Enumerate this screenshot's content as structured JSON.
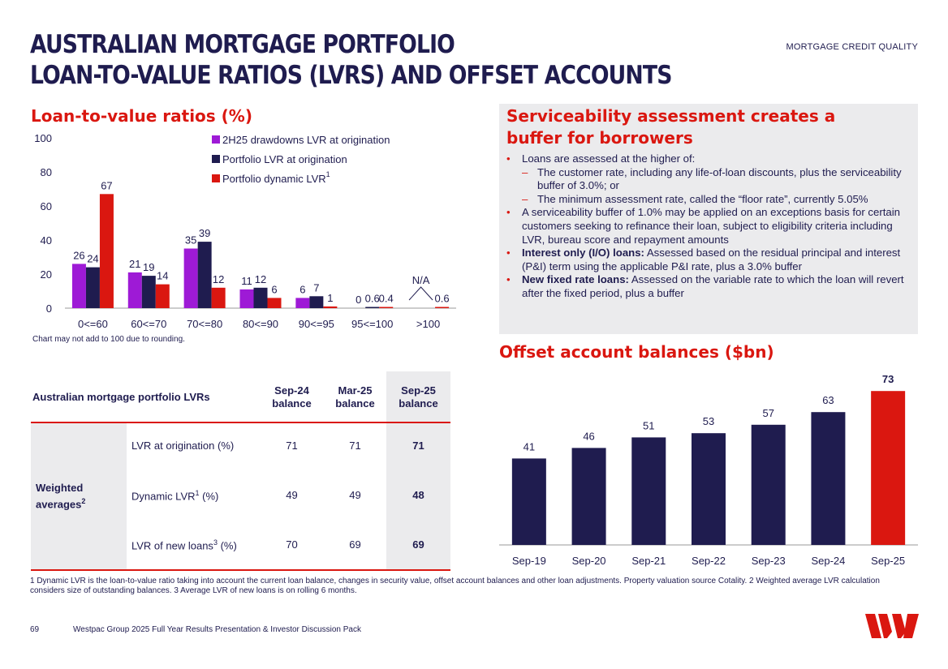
{
  "header": {
    "title_line1": "AUSTRALIAN MORTGAGE PORTFOLIO",
    "title_line2": "LOAN-TO-VALUE RATIOS (LVRS) AND OFFSET ACCOUNTS",
    "section": "MORTGAGE CREDIT QUALITY"
  },
  "colors": {
    "purple": "#9e1ad6",
    "navy": "#1f1c4f",
    "red": "#da1710",
    "grey": "#ebebed"
  },
  "lvr_chart": {
    "heading": "Loan-to-value ratios (%)",
    "legend": [
      {
        "label": "2H25 drawdowns LVR at origination",
        "sup": ""
      },
      {
        "label": "Portfolio LVR at origination",
        "sup": ""
      },
      {
        "label": "Portfolio dynamic LVR",
        "sup": "1"
      }
    ],
    "note": "Chart may not add to 100 due to rounding.",
    "na_label": "N/A"
  },
  "serviceability": {
    "title": "Serviceability assessment creates a buffer for borrowers",
    "b1": "Loans are assessed at the higher of:",
    "b1a": "The customer rate, including any life-of-loan discounts, plus the serviceability buffer of 3.0%; or",
    "b1b": "The minimum assessment rate, called the “floor rate”, currently 5.05%",
    "b2": "A serviceability buffer of 1.0% may be applied on an exceptions basis for certain customers seeking to refinance their loan, subject to eligibility criteria including LVR, bureau score and repayment amounts",
    "b3_bold": "Interest only (I/O) loans:",
    "b3": " Assessed based on the residual principal and interest (P&I) term using the applicable P&I rate, plus a 3.0% buffer",
    "b4_bold": "New fixed rate loans:",
    "b4": " Assessed on the variable rate to which the loan will revert after the fixed period, plus a buffer"
  },
  "table": {
    "title": "Australian mortgage portfolio LVRs",
    "cols": [
      {
        "l1": "Sep-24",
        "l2": "balance"
      },
      {
        "l1": "Mar-25",
        "l2": "balance"
      },
      {
        "l1": "Sep-25",
        "l2": "balance"
      }
    ],
    "group_l1": "Weighted",
    "group_l2": "averages",
    "group_sup": "2",
    "rows": [
      {
        "label": "LVR at origination (%)",
        "sup": "",
        "suffix": "",
        "values": [
          "71",
          "71",
          "71"
        ]
      },
      {
        "label": "Dynamic LVR",
        "sup": "1",
        "suffix": " (%)",
        "values": [
          "49",
          "49",
          "48"
        ]
      },
      {
        "label": "LVR of new loans",
        "sup": "3",
        "suffix": " (%)",
        "values": [
          "70",
          "69",
          "69"
        ]
      }
    ]
  },
  "offset": {
    "heading": "Offset account balances ($bn)"
  },
  "chart_data": [
    {
      "type": "bar",
      "title": "Loan-to-value ratios (%)",
      "categories": [
        "0<=60",
        "60<=70",
        "70<=80",
        "80<=90",
        "90<=95",
        "95<=100",
        ">100"
      ],
      "series": [
        {
          "name": "2H25 drawdowns LVR at origination",
          "values": [
            26,
            21,
            35,
            11,
            6,
            0,
            null
          ],
          "labels": [
            "26",
            "21",
            "35",
            "11",
            "6",
            "0",
            ""
          ]
        },
        {
          "name": "Portfolio LVR at origination",
          "values": [
            24,
            19,
            39,
            12,
            7,
            0.6,
            null
          ],
          "labels": [
            "24",
            "19",
            "39",
            "12",
            "7",
            "0.6",
            ""
          ]
        },
        {
          "name": "Portfolio dynamic LVR",
          "values": [
            67,
            14,
            12,
            6,
            1,
            0.4,
            0.6
          ],
          "labels": [
            "67",
            "14",
            "12",
            "6",
            "1",
            "0.4",
            "0.6"
          ]
        }
      ],
      "yticks": [
        "0",
        "20",
        "40",
        "60",
        "80",
        "100"
      ],
      "ylim": [
        0,
        100
      ],
      "legend": "top-right"
    },
    {
      "type": "bar",
      "title": "Offset account balances ($bn)",
      "categories": [
        "Sep-19",
        "Sep-20",
        "Sep-21",
        "Sep-22",
        "Sep-23",
        "Sep-24",
        "Sep-25"
      ],
      "values": [
        41,
        46,
        51,
        53,
        57,
        63,
        73
      ],
      "labels": [
        "41",
        "46",
        "51",
        "53",
        "57",
        "63",
        "73"
      ],
      "highlight_last": true
    }
  ],
  "footnote": "1 Dynamic LVR is the loan-to-value ratio taking into account the current loan balance, changes in security value, offset account balances and other loan adjustments. Property valuation source Cotality. 2 Weighted average LVR calculation considers size of outstanding balances. 3 Average LVR of new loans is on rolling 6 months.",
  "footer": {
    "page": "69",
    "text": "Westpac Group 2025 Full Year Results Presentation & Investor Discussion Pack"
  }
}
